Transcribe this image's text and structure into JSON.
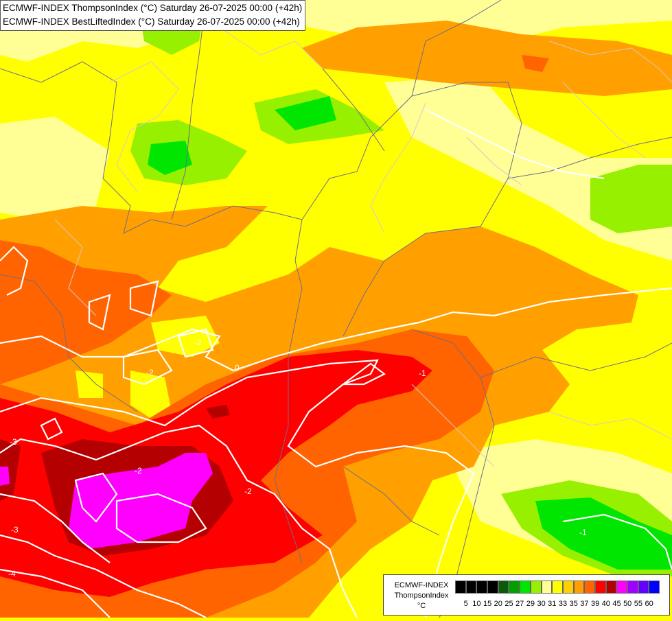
{
  "title": {
    "line1": "ECMWF-INDEX ThompsonIndex (°C) Saturday 26-07-2025 00:00 (+42h)",
    "line2": "ECMWF-INDEX BestLiftedIndex (°C) Saturday 26-07-2025 00:00 (+42h)"
  },
  "legend": {
    "model": "ECMWF-INDEX",
    "parameter": "ThompsonIndex",
    "unit": "°C",
    "ticks": [
      "5",
      "10",
      "15",
      "20",
      "25",
      "27",
      "29",
      "30",
      "31",
      "33",
      "35",
      "37",
      "39",
      "40",
      "45",
      "50",
      "55",
      "60"
    ],
    "colors": [
      "#000000",
      "#000000",
      "#000000",
      "#000000",
      "#0a5a0a",
      "#00a000",
      "#00e600",
      "#96f000",
      "#ffff96",
      "#ffff00",
      "#ffd000",
      "#ffa000",
      "#ff6400",
      "#ff0000",
      "#b40000",
      "#ff00ff",
      "#a000ff",
      "#6400ff",
      "#0000ff"
    ]
  },
  "contour_labels": [
    "-3",
    "-4",
    "-3",
    "-2",
    "-2",
    "-2",
    "-2",
    "-1",
    "0",
    "-1"
  ]
}
